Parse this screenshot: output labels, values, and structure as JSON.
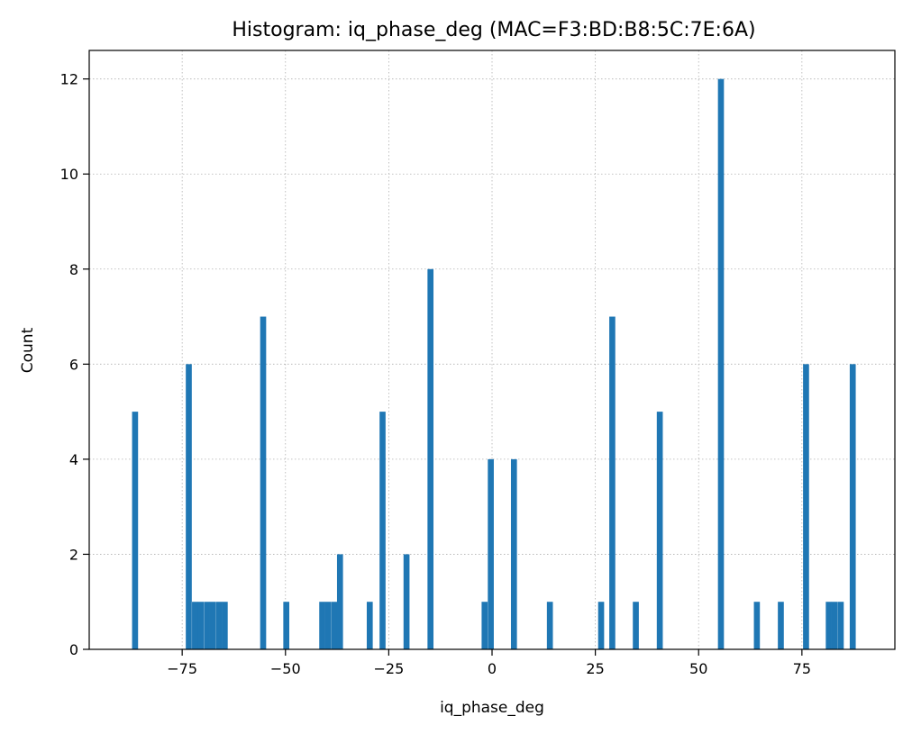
{
  "chart_data": {
    "type": "bar",
    "title": "Histogram: iq_phase_deg (MAC=F3:BD:B8:5C:7E:6A)",
    "xlabel": "iq_phase_deg",
    "ylabel": "Count",
    "xlim": [
      -97.5,
      97.5
    ],
    "ylim": [
      0,
      12.6
    ],
    "xticks": [
      -75,
      -50,
      -25,
      0,
      25,
      50,
      75
    ],
    "xtick_labels": [
      "−75",
      "−50",
      "−25",
      "0",
      "25",
      "50",
      "75"
    ],
    "yticks": [
      0,
      2,
      4,
      6,
      8,
      10,
      12
    ],
    "ytick_labels": [
      "0",
      "2",
      "4",
      "6",
      "8",
      "10",
      "12"
    ],
    "grid": true,
    "bar_color": "#1f77b4",
    "bin_width": 1.45,
    "bins": [
      {
        "x": -86.4,
        "count": 5
      },
      {
        "x": -73.4,
        "count": 6
      },
      {
        "x": -71.9,
        "count": 1
      },
      {
        "x": -70.5,
        "count": 1
      },
      {
        "x": -69.0,
        "count": 1
      },
      {
        "x": -67.6,
        "count": 1
      },
      {
        "x": -66.1,
        "count": 1
      },
      {
        "x": -64.7,
        "count": 1
      },
      {
        "x": -55.4,
        "count": 7
      },
      {
        "x": -49.8,
        "count": 1
      },
      {
        "x": -41.1,
        "count": 1
      },
      {
        "x": -39.7,
        "count": 1
      },
      {
        "x": -38.2,
        "count": 1
      },
      {
        "x": -36.8,
        "count": 2
      },
      {
        "x": -29.6,
        "count": 1
      },
      {
        "x": -26.5,
        "count": 5
      },
      {
        "x": -20.7,
        "count": 2
      },
      {
        "x": -14.9,
        "count": 8
      },
      {
        "x": -1.8,
        "count": 1
      },
      {
        "x": -0.3,
        "count": 4
      },
      {
        "x": 5.3,
        "count": 4
      },
      {
        "x": 14.0,
        "count": 1
      },
      {
        "x": 26.4,
        "count": 1
      },
      {
        "x": 29.1,
        "count": 7
      },
      {
        "x": 34.8,
        "count": 1
      },
      {
        "x": 40.6,
        "count": 5
      },
      {
        "x": 55.4,
        "count": 12
      },
      {
        "x": 64.1,
        "count": 1
      },
      {
        "x": 69.9,
        "count": 1
      },
      {
        "x": 76.0,
        "count": 6
      },
      {
        "x": 81.5,
        "count": 1
      },
      {
        "x": 82.9,
        "count": 1
      },
      {
        "x": 84.4,
        "count": 1
      },
      {
        "x": 87.3,
        "count": 6
      }
    ]
  }
}
